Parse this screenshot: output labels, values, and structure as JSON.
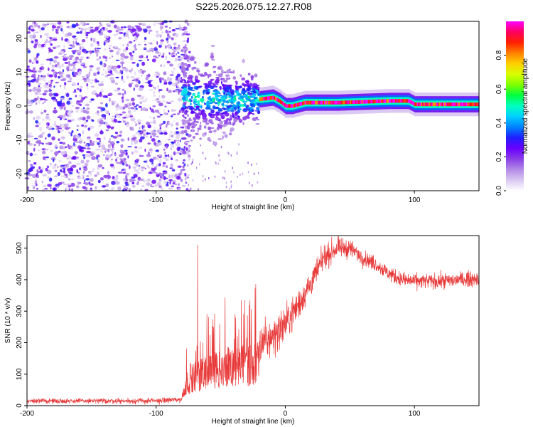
{
  "figure": {
    "title": "S225.2026.075.12.27.R08"
  },
  "colors": {
    "snr_line": "#e83a3a",
    "axis": "#000000",
    "colormap": [
      "#ffffff",
      "#d9c7f2",
      "#b38ae6",
      "#8a3ee6",
      "#6a00ff",
      "#1f1fff",
      "#0080ff",
      "#00d0ff",
      "#00ffc0",
      "#00ff40",
      "#80ff00",
      "#d8ff00",
      "#ffd000",
      "#ff8000",
      "#ff2000",
      "#ff0060",
      "#ff00ff"
    ]
  },
  "chart_data": [
    {
      "type": "heatmap",
      "title": "",
      "xlabel": "Height of straight line (km)",
      "ylabel": "Frequency (Hz)",
      "xlim": [
        -200,
        150
      ],
      "ylim": [
        -25,
        25
      ],
      "x_ticks": [
        -200,
        -100,
        0,
        100
      ],
      "x_tick_labels": [
        "-200",
        "-100",
        "0",
        "100"
      ],
      "y_ticks": [
        -20,
        -10,
        0,
        10,
        20
      ],
      "y_tick_labels": [
        "-20",
        "-10",
        "0",
        "10",
        "20"
      ],
      "colorbar": {
        "label": "Normalized spectral amplitude",
        "range": [
          0,
          1
        ],
        "ticks": [
          0.0,
          0.2,
          0.4,
          0.6,
          0.8
        ],
        "tick_labels": [
          "0.0",
          "0.2",
          "0.4",
          "0.6",
          "0.8"
        ]
      },
      "description_of_structure": {
        "noise_region_km": [
          -200,
          -80
        ],
        "scatter_region_km": [
          -80,
          -20
        ],
        "carrier_region_km": [
          -20,
          150
        ],
        "carrier_freq_track": [
          {
            "x": -80,
            "y": 3
          },
          {
            "x": -60,
            "y": 2
          },
          {
            "x": -40,
            "y": 1.5
          },
          {
            "x": -20,
            "y": 2
          },
          {
            "x": -10,
            "y": 2.5
          },
          {
            "x": -5,
            "y": 1.5
          },
          {
            "x": 0,
            "y": 0
          },
          {
            "x": 5,
            "y": 0
          },
          {
            "x": 15,
            "y": 1
          },
          {
            "x": 40,
            "y": 1
          },
          {
            "x": 80,
            "y": 1.5
          },
          {
            "x": 95,
            "y": 1.5
          },
          {
            "x": 100,
            "y": 0.5
          },
          {
            "x": 150,
            "y": 0.5
          }
        ]
      }
    },
    {
      "type": "line",
      "title": "",
      "xlabel": "Height of straight line (km)",
      "ylabel": "SNR (10 * v/v)",
      "xlim": [
        -200,
        150
      ],
      "ylim": [
        0,
        540
      ],
      "x_ticks": [
        -200,
        -100,
        0,
        100
      ],
      "x_tick_labels": [
        "-200",
        "-100",
        "0",
        "100"
      ],
      "y_ticks": [
        0,
        100,
        200,
        300,
        400,
        500
      ],
      "y_tick_labels": [
        "0",
        "100",
        "200",
        "300",
        "400",
        "500"
      ],
      "envelope": [
        {
          "x": -200,
          "y": 15
        },
        {
          "x": -150,
          "y": 15
        },
        {
          "x": -100,
          "y": 15
        },
        {
          "x": -80,
          "y": 20
        },
        {
          "x": -75,
          "y": 60
        },
        {
          "x": -60,
          "y": 80
        },
        {
          "x": -40,
          "y": 90
        },
        {
          "x": -20,
          "y": 100
        },
        {
          "x": -18,
          "y": 190
        },
        {
          "x": -10,
          "y": 220
        },
        {
          "x": 0,
          "y": 260
        },
        {
          "x": 10,
          "y": 320
        },
        {
          "x": 20,
          "y": 390
        },
        {
          "x": 30,
          "y": 470
        },
        {
          "x": 40,
          "y": 500
        },
        {
          "x": 50,
          "y": 500
        },
        {
          "x": 60,
          "y": 470
        },
        {
          "x": 70,
          "y": 450
        },
        {
          "x": 80,
          "y": 420
        },
        {
          "x": 90,
          "y": 400
        },
        {
          "x": 100,
          "y": 395
        },
        {
          "x": 120,
          "y": 395
        },
        {
          "x": 150,
          "y": 405
        }
      ],
      "noise_amplitude": [
        {
          "x": -200,
          "y": 6
        },
        {
          "x": -80,
          "y": 8
        },
        {
          "x": -75,
          "y": 60
        },
        {
          "x": -20,
          "y": 90
        },
        {
          "x": -18,
          "y": 55
        },
        {
          "x": 0,
          "y": 50
        },
        {
          "x": 20,
          "y": 35
        },
        {
          "x": 60,
          "y": 20
        },
        {
          "x": 150,
          "y": 20
        }
      ]
    }
  ]
}
